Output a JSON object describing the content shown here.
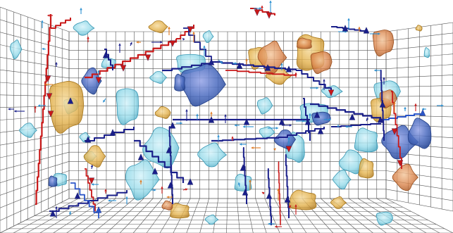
{
  "scene": {
    "description_kind": "3d-volume-rendering",
    "background": "#ffffff",
    "colors": {
      "grid": "#4a4a4a",
      "cyan_blob": "#8fd8e8",
      "cyan_blob_dark": "#4aa9c4",
      "blue_blob": "#3f5fb0",
      "gold_blob": "#e2b04a",
      "orange_blob": "#d9834a",
      "path_dark_blue": "#1a1f8a",
      "path_blue": "#2a55c8",
      "path_red": "#c81818",
      "arrow_orange": "#e07a20",
      "arrow_light_blue": "#2a8fd0"
    },
    "icons": [
      "blob-surface-icon",
      "trajectory-path-icon",
      "vector-arrow-icon"
    ]
  }
}
